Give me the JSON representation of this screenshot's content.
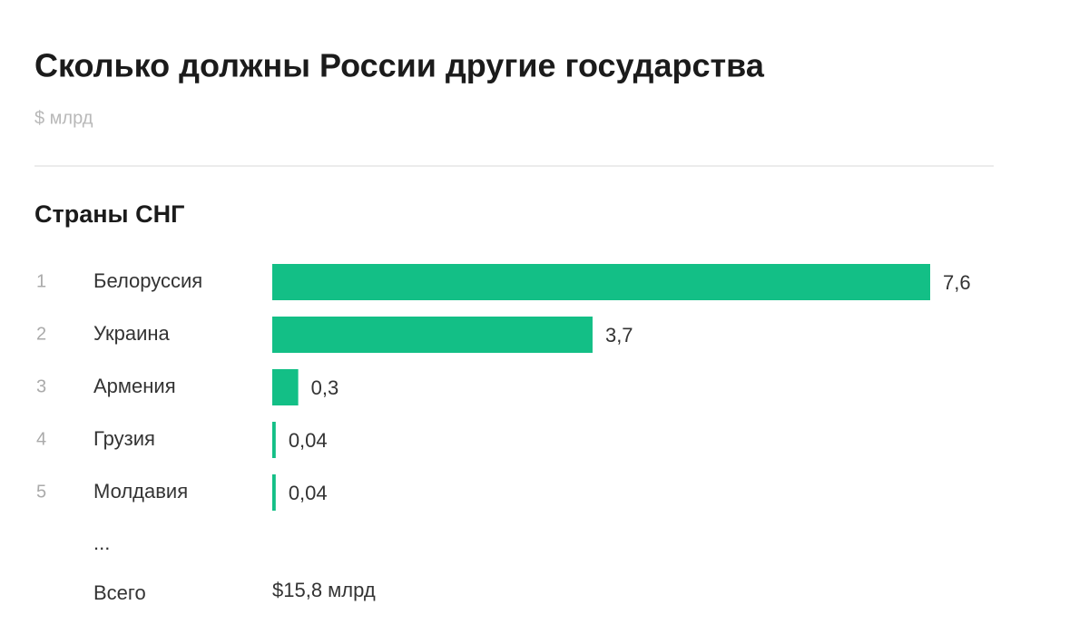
{
  "chart_data": {
    "type": "bar",
    "title": "Сколько должны России другие государства",
    "subtitle": "$ млрд",
    "section": "Страны СНГ",
    "ranks": [
      "1",
      "2",
      "3",
      "4",
      "5"
    ],
    "categories": [
      "Белоруссия",
      "Украина",
      "Армения",
      "Грузия",
      "Молдавия"
    ],
    "values": [
      7.6,
      3.7,
      0.3,
      0.04,
      0.04
    ],
    "value_labels": [
      "7,6",
      "3,7",
      "0,3",
      "0,04",
      "0,04"
    ],
    "color": "#13bf86",
    "ellipsis": "...",
    "total_label": "Всего",
    "total_value": "$15,8 млрд"
  }
}
